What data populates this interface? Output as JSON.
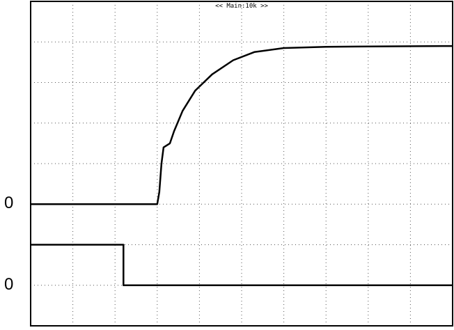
{
  "chart_data": {
    "type": "line",
    "title": "<< Main:10k >>",
    "grid": true,
    "divisions": {
      "x": 10,
      "y": 8
    },
    "xlim": [
      0,
      10
    ],
    "ylim": [
      0,
      8
    ],
    "channels": [
      {
        "zero_label": "0",
        "zero_level": 3,
        "points": [
          [
            0,
            3
          ],
          [
            3,
            3
          ],
          [
            3.05,
            3.3
          ],
          [
            3.1,
            4
          ],
          [
            3.15,
            4.4
          ],
          [
            3.3,
            4.5
          ],
          [
            3.4,
            4.8
          ],
          [
            3.6,
            5.3
          ],
          [
            3.9,
            5.8
          ],
          [
            4.3,
            6.2
          ],
          [
            4.8,
            6.55
          ],
          [
            5.3,
            6.75
          ],
          [
            6,
            6.85
          ],
          [
            7,
            6.88
          ],
          [
            8,
            6.89
          ],
          [
            10,
            6.9
          ]
        ]
      },
      {
        "zero_label": "0",
        "zero_level": 1,
        "points": [
          [
            0,
            2
          ],
          [
            2.2,
            2
          ],
          [
            2.2,
            1
          ],
          [
            10,
            1
          ]
        ]
      }
    ]
  }
}
